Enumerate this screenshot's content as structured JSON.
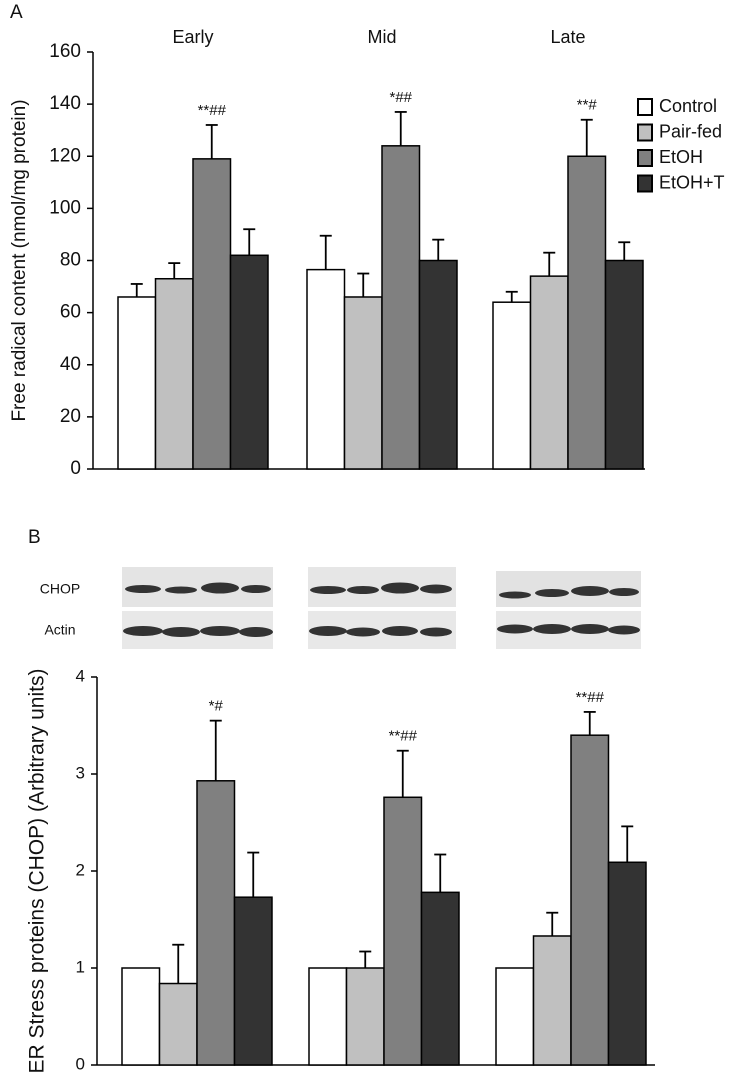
{
  "chart_data": [
    {
      "type": "bar",
      "panel": "A",
      "y_label": "Free radical content (nmol/mg protein)",
      "categories": [
        "Early",
        "Mid",
        "Late"
      ],
      "series": [
        {
          "name": "Control",
          "color": "#ffffff",
          "values": [
            66,
            76.5,
            64
          ],
          "errors": [
            5,
            13,
            4
          ]
        },
        {
          "name": "Pair-fed",
          "color": "#c0c0c0",
          "values": [
            73,
            66,
            74
          ],
          "errors": [
            6,
            9,
            9
          ]
        },
        {
          "name": "EtOH",
          "color": "#808080",
          "values": [
            119,
            124,
            120
          ],
          "errors": [
            13,
            13,
            14
          ]
        },
        {
          "name": "EtOH+T",
          "color": "#333333",
          "values": [
            82,
            80,
            80
          ],
          "errors": [
            10,
            8,
            7
          ]
        }
      ],
      "annotations": [
        "**##",
        "*##",
        "**#"
      ],
      "ylim": [
        0,
        160
      ],
      "yticks": [
        0,
        20,
        40,
        60,
        80,
        100,
        120,
        140,
        160
      ],
      "legend": "upper right"
    },
    {
      "type": "bar",
      "panel": "B",
      "y_label": "ER Stress proteins (CHOP) (Arbitrary units)",
      "blot_labels": [
        "CHOP",
        "Actin"
      ],
      "categories": [
        null,
        null,
        null
      ],
      "series": [
        {
          "name": "Control",
          "color": "#ffffff",
          "values": [
            1,
            1,
            1
          ],
          "errors": [
            null,
            null,
            null
          ]
        },
        {
          "name": "Pair-fed",
          "color": "#c0c0c0",
          "values": [
            0.84,
            1.0,
            1.33
          ],
          "errors": [
            0.4,
            0.17,
            0.24
          ]
        },
        {
          "name": "EtOH",
          "color": "#808080",
          "values": [
            2.93,
            2.76,
            3.4
          ],
          "errors": [
            0.62,
            0.48,
            0.24
          ]
        },
        {
          "name": "EtOH+T",
          "color": "#333333",
          "values": [
            1.73,
            1.78,
            2.09
          ],
          "errors": [
            0.46,
            0.39,
            0.37
          ]
        }
      ],
      "annotations": [
        "*#",
        "**##",
        "**##"
      ],
      "ylim": [
        0,
        4
      ],
      "yticks": [
        0,
        1,
        2,
        3,
        4
      ]
    }
  ]
}
